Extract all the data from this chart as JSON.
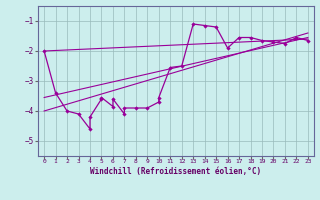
{
  "xlabel": "Windchill (Refroidissement éolien,°C)",
  "background_color": "#cceeed",
  "grid_color": "#99bbbb",
  "line_color": "#990099",
  "xlim": [
    -0.5,
    23.5
  ],
  "ylim": [
    -5.5,
    -0.5
  ],
  "yticks": [
    -5,
    -4,
    -3,
    -2,
    -1
  ],
  "xticks": [
    0,
    1,
    2,
    3,
    4,
    5,
    6,
    7,
    8,
    9,
    10,
    11,
    12,
    13,
    14,
    15,
    16,
    17,
    18,
    19,
    20,
    21,
    22,
    23
  ],
  "main_x": [
    0,
    1,
    2,
    3,
    4,
    4,
    5,
    5,
    6,
    6,
    7,
    7,
    8,
    9,
    10,
    10,
    11,
    12,
    13,
    14,
    15,
    16,
    17,
    18,
    19,
    20,
    21,
    22,
    23
  ],
  "main_y": [
    -2.0,
    -3.4,
    -4.0,
    -4.1,
    -4.6,
    -4.2,
    -3.6,
    -3.55,
    -3.85,
    -3.6,
    -4.1,
    -3.9,
    -3.9,
    -3.9,
    -3.7,
    -3.55,
    -2.55,
    -2.5,
    -1.1,
    -1.15,
    -1.2,
    -1.9,
    -1.55,
    -1.55,
    -1.65,
    -1.7,
    -1.75,
    -1.55,
    -1.65
  ],
  "line1_x": [
    0,
    23
  ],
  "line1_y": [
    -3.55,
    -1.55
  ],
  "line2_x": [
    0,
    23
  ],
  "line2_y": [
    -4.0,
    -1.4
  ],
  "line3_x": [
    0,
    23
  ],
  "line3_y": [
    -2.0,
    -1.6
  ]
}
